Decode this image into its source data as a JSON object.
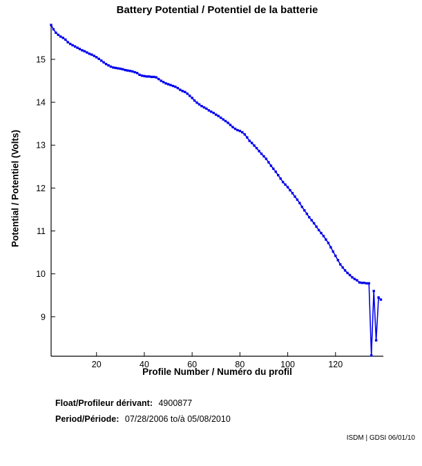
{
  "chart_data": {
    "type": "line",
    "title": "Battery Potential / Potentiel de la batterie",
    "xlabel": "Profile Number / Numéro du profil",
    "ylabel": "Potential / Potentiel (Volts)",
    "x_ticks": [
      20,
      40,
      60,
      80,
      100,
      120
    ],
    "y_ticks": [
      9,
      10,
      11,
      12,
      13,
      14,
      15
    ],
    "xlim": [
      1,
      140
    ],
    "ylim": [
      8.08,
      15.82
    ],
    "grid": false,
    "legend": "none",
    "line_color": "#0000EE",
    "axis_color": "#000000",
    "marker": "square-dot",
    "series": [
      {
        "name": "battery-potential",
        "x_start": 1,
        "x_step": 1,
        "values": [
          15.8,
          15.7,
          15.62,
          15.57,
          15.53,
          15.5,
          15.46,
          15.4,
          15.36,
          15.33,
          15.3,
          15.27,
          15.24,
          15.21,
          15.19,
          15.16,
          15.13,
          15.11,
          15.08,
          15.05,
          15.01,
          14.97,
          14.93,
          14.89,
          14.86,
          14.83,
          14.81,
          14.8,
          14.79,
          14.78,
          14.77,
          14.75,
          14.74,
          14.73,
          14.72,
          14.7,
          14.68,
          14.64,
          14.62,
          14.61,
          14.6,
          14.6,
          14.59,
          14.59,
          14.58,
          14.54,
          14.5,
          14.47,
          14.44,
          14.42,
          14.4,
          14.38,
          14.36,
          14.33,
          14.29,
          14.26,
          14.24,
          14.2,
          14.15,
          14.1,
          14.04,
          13.99,
          13.95,
          13.91,
          13.88,
          13.85,
          13.81,
          13.78,
          13.75,
          13.71,
          13.68,
          13.64,
          13.6,
          13.56,
          13.52,
          13.47,
          13.42,
          13.38,
          13.35,
          13.33,
          13.3,
          13.25,
          13.18,
          13.1,
          13.05,
          12.99,
          12.93,
          12.86,
          12.8,
          12.74,
          12.68,
          12.6,
          12.52,
          12.45,
          12.38,
          12.3,
          12.22,
          12.14,
          12.08,
          12.02,
          11.95,
          11.88,
          11.8,
          11.73,
          11.65,
          11.56,
          11.48,
          11.4,
          11.32,
          11.25,
          11.18,
          11.1,
          11.02,
          10.95,
          10.88,
          10.8,
          10.72,
          10.62,
          10.52,
          10.42,
          10.32,
          10.22,
          10.15,
          10.08,
          10.02,
          9.97,
          9.92,
          9.88,
          9.85,
          9.8,
          9.79,
          9.79,
          9.78,
          9.78,
          8.1,
          9.6,
          8.45,
          9.45,
          9.4
        ]
      }
    ]
  },
  "footer": {
    "float_label": "Float/Profileur dérivant:",
    "float_value": "4900877",
    "period_label": "Period/Période:",
    "period_value": "07/28/2006 to/à 05/08/2010",
    "watermark": "ISDM | GDSI 06/01/10"
  }
}
